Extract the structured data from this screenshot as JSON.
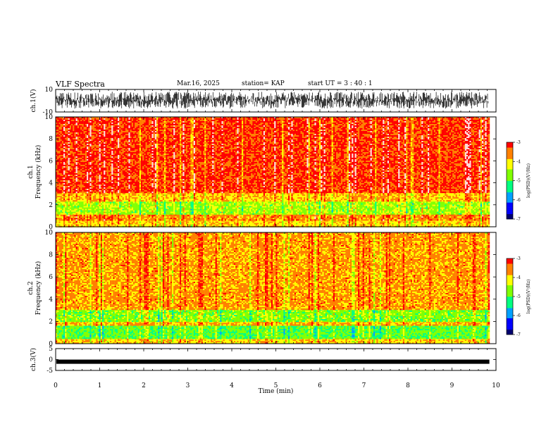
{
  "header": {
    "title": "VLF Spectra",
    "date": "Mar.16, 2025",
    "station": "station= KAP",
    "start": "start  UT =  3 : 40 : 1"
  },
  "chart_data": [
    {
      "type": "line",
      "ylabel": "ch.1(V)",
      "ylim": [
        -10,
        10
      ],
      "y_ticks": [
        "10",
        "-10"
      ],
      "description_values": {
        "typical_envelope": [
          -7,
          8
        ]
      }
    },
    {
      "type": "heatmap",
      "ylabel_line1": "ch.1",
      "ylabel_line2": "Frequency (kHz)",
      "ylim": [
        0,
        10
      ],
      "y_ticks": [
        "0",
        "2",
        "4",
        "6",
        "8",
        "10"
      ],
      "bands": [
        {
          "from": 0.0,
          "to": 0.6,
          "level": -4.0
        },
        {
          "from": 0.6,
          "to": 1.2,
          "level": -3.6
        },
        {
          "from": 1.2,
          "to": 2.4,
          "level": -4.6
        },
        {
          "from": 2.4,
          "to": 3.2,
          "level": -3.9
        },
        {
          "from": 3.2,
          "to": 10.0,
          "level": -3.2
        }
      ],
      "colorbar": {
        "label": "log(PSD)(V²/Hz)",
        "ticks": [
          "-3",
          "-4",
          "-5",
          "-6",
          "-7"
        ],
        "range": [
          -7,
          -3
        ]
      }
    },
    {
      "type": "heatmap",
      "ylabel_line1": "ch.2",
      "ylabel_line2": "Frequency (kHz)",
      "ylim": [
        0,
        10
      ],
      "y_ticks": [
        "0",
        "2",
        "4",
        "6",
        "8",
        "10"
      ],
      "bands": [
        {
          "from": 0.0,
          "to": 0.5,
          "level": -4.0
        },
        {
          "from": 0.5,
          "to": 1.7,
          "level": -4.9
        },
        {
          "from": 1.7,
          "to": 2.0,
          "level": -3.8
        },
        {
          "from": 2.0,
          "to": 3.1,
          "level": -4.7
        },
        {
          "from": 3.1,
          "to": 10.0,
          "level": -3.7
        }
      ],
      "colorbar": {
        "label": "log(PSD)(V²/Hz)",
        "ticks": [
          "-3",
          "-4",
          "-5",
          "-6",
          "-7"
        ],
        "range": [
          -7,
          -3
        ]
      }
    },
    {
      "type": "line",
      "ylabel": "ch.3(V)",
      "ylim": [
        -5,
        5
      ],
      "y_ticks": [
        "5",
        "0",
        "-5"
      ],
      "description_values": {
        "level": -1.0
      }
    }
  ],
  "x_axis": {
    "label": "Time (min)",
    "range": [
      0,
      10
    ],
    "ticks": [
      "0",
      "1",
      "2",
      "3",
      "4",
      "5",
      "6",
      "7",
      "8",
      "9",
      "10"
    ],
    "data_end": 9.85
  },
  "colors": {
    "scale": [
      "#000070",
      "#0000ff",
      "#00a0ff",
      "#00ff80",
      "#80ff00",
      "#ffff00",
      "#ff8000",
      "#ff0000",
      "#ffd8d8"
    ]
  }
}
